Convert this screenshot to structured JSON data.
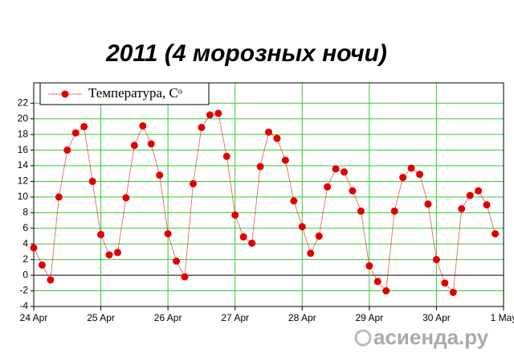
{
  "chart_data": {
    "type": "line",
    "title": "2011 (4 морозных ночи)",
    "x": [
      0,
      3,
      6,
      9,
      12,
      15,
      18,
      21,
      24,
      27,
      30,
      33,
      36,
      39,
      42,
      45,
      48,
      51,
      54,
      57,
      60,
      63,
      66,
      69,
      72,
      75,
      78,
      81,
      84,
      87,
      90,
      93,
      96,
      99,
      102,
      105,
      108,
      111,
      114,
      117,
      120,
      123,
      126,
      129,
      132,
      135,
      138,
      141,
      144,
      147,
      150,
      153,
      156,
      159,
      162,
      165
    ],
    "series": [
      {
        "name": "Температура, Cᵒ",
        "color": "#e00000",
        "values": [
          3.5,
          1.3,
          -0.6,
          10,
          16,
          18.2,
          19,
          12,
          5.2,
          2.6,
          2.9,
          9.9,
          16.6,
          19.1,
          16.8,
          12.8,
          5.3,
          1.8,
          -0.2,
          11.7,
          18.9,
          20.5,
          20.7,
          15.2,
          7.7,
          4.9,
          4.1,
          13.9,
          18.3,
          17.5,
          14.7,
          9.5,
          6.2,
          2.8,
          5,
          11.3,
          13.6,
          13.2,
          10.8,
          8.2,
          1.2,
          -0.8,
          -2,
          8.2,
          12.5,
          13.7,
          12.9,
          9.1,
          2,
          -1,
          -2.2,
          8.5,
          10.2,
          10.8,
          9,
          5.3
        ]
      }
    ],
    "xlim": [
      0,
      168
    ],
    "xticks": [
      {
        "value": 0,
        "label": "24 Apr"
      },
      {
        "value": 24,
        "label": "25 Apr"
      },
      {
        "value": 48,
        "label": "26 Apr"
      },
      {
        "value": 72,
        "label": "27 Apr"
      },
      {
        "value": 96,
        "label": "28 Apr"
      },
      {
        "value": 120,
        "label": "29 Apr"
      },
      {
        "value": 144,
        "label": "30 Apr"
      },
      {
        "value": 168,
        "label": "1 May"
      }
    ],
    "ylim": [
      -4,
      24.6
    ],
    "yticks": [
      -4,
      -2,
      0,
      2,
      4,
      6,
      8,
      10,
      12,
      14,
      16,
      18,
      20,
      22
    ],
    "grid": true,
    "grid_color": "#33cc33",
    "legend": "top-left"
  },
  "watermark": "асиенда.ру"
}
